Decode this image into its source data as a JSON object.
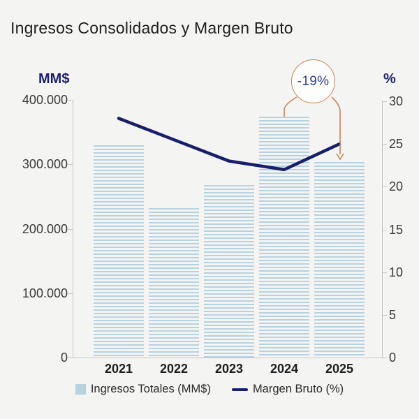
{
  "title": "Ingresos Consolidados y Margen Bruto",
  "left_axis_unit": "MM$",
  "right_axis_unit": "%",
  "annotation": {
    "text": "-19%",
    "connects": [
      "2024",
      "2025"
    ]
  },
  "legend": [
    {
      "label": "Ingresos Totales (MM$)",
      "swatch": "bar"
    },
    {
      "label": "Margen Bruto (%)",
      "swatch": "line"
    }
  ],
  "colors": {
    "background": "#f4f4f2",
    "bar_blue": "#b7d2e1",
    "line_navy": "#171f6b",
    "axis_label_navy": "#1b1f6e",
    "annotation_orange": "#c8825a",
    "annotation_text_blue": "#2e3f8f",
    "axis_gray": "#c6c6c3",
    "text_dark": "#212121"
  },
  "chart_data": {
    "type": "bar",
    "subtype": "combo-bar-line",
    "title": "Ingresos Consolidados y Margen Bruto",
    "categories": [
      "2021",
      "2022",
      "2023",
      "2024",
      "2025"
    ],
    "series": [
      {
        "name": "Ingresos Totales (MM$)",
        "type": "bar",
        "axis": "left",
        "values": [
          330000,
          232000,
          268000,
          374000,
          303000
        ]
      },
      {
        "name": "Margen Bruto (%)",
        "type": "line",
        "axis": "right",
        "values": [
          28,
          25.5,
          23,
          22,
          25
        ]
      }
    ],
    "left_axis": {
      "label": "MM$",
      "ticks": [
        "400.000",
        "300.000",
        "200.000",
        "100.000",
        "0"
      ],
      "tick_values": [
        400000,
        300000,
        200000,
        100000,
        0
      ],
      "range": [
        0,
        400000
      ]
    },
    "right_axis": {
      "label": "%",
      "ticks": [
        "30",
        "25",
        "20",
        "15",
        "10",
        "5",
        "0"
      ],
      "tick_values": [
        30,
        25,
        20,
        15,
        10,
        5,
        0
      ],
      "range": [
        0,
        30
      ]
    },
    "annotation": {
      "text": "-19%"
    },
    "legend_position": "bottom",
    "grid": false
  }
}
